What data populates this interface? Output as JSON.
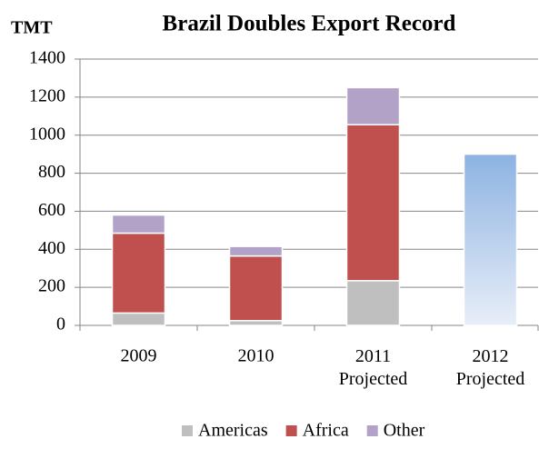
{
  "chart_data": {
    "type": "stacked_bar",
    "title": "Brazil Doubles Export Record",
    "y_label": "TMT",
    "categories": [
      "2009",
      "2010",
      "2011\nProjected",
      "2012\nProjected"
    ],
    "series": [
      {
        "name": "Americas",
        "color": "#bfbfbf",
        "values": [
          65,
          25,
          235,
          null
        ]
      },
      {
        "name": "Africa",
        "color": "#c0504d",
        "values": [
          420,
          340,
          820,
          null
        ]
      },
      {
        "name": "Other",
        "color": "#b3a2c7",
        "values": [
          95,
          50,
          195,
          null
        ]
      },
      {
        "color": [
          "#8db3e2",
          "#e8eef8"
        ],
        "values": [
          null,
          null,
          null,
          900
        ]
      }
    ],
    "ylim": [
      0,
      1400
    ],
    "yticks": [
      0,
      200,
      400,
      600,
      800,
      1000,
      1200,
      1400
    ],
    "grid": true,
    "legend": "bottom"
  }
}
